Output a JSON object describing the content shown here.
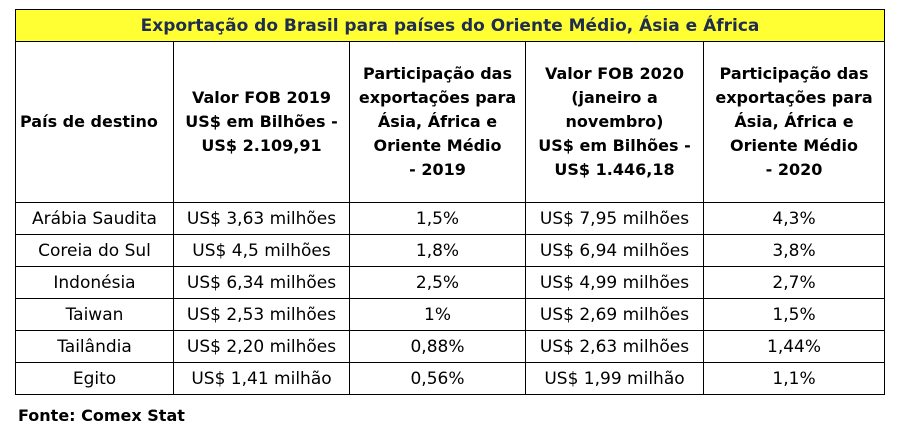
{
  "title": "Exportação do Brasil para países do Oriente Médio, Ásia e África",
  "headers": [
    {
      "lines": [
        "País de destino"
      ]
    },
    {
      "lines": [
        "Valor FOB 2019",
        "US$ em Bilhões -",
        "US$ 2.109,91"
      ]
    },
    {
      "lines": [
        "Participação das",
        "exportações para",
        "Ásia, África e",
        "Oriente Médio",
        "- 2019"
      ]
    },
    {
      "lines": [
        "Valor FOB 2020",
        "(janeiro a",
        "novembro)",
        "US$ em Bilhões -",
        "US$ 1.446,18"
      ]
    },
    {
      "lines": [
        "Participação das",
        "exportações para",
        "Ásia, África e",
        "Oriente Médio",
        "- 2020"
      ]
    }
  ],
  "rows": [
    [
      "Arábia Saudita",
      "US$ 3,63 milhões",
      "1,5%",
      "US$ 7,95 milhões",
      "4,3%"
    ],
    [
      "Coreia do Sul",
      "US$ 4,5 milhões",
      "1,8%",
      "US$ 6,94 milhões",
      "3,8%"
    ],
    [
      "Indonésia",
      "US$ 6,34 milhões",
      "2,5%",
      "US$ 4,99 milhões",
      "2,7%"
    ],
    [
      "Taiwan",
      "US$ 2,53 milhões",
      "1%",
      "US$ 2,69 milhões",
      "1,5%"
    ],
    [
      "Tailândia",
      "US$ 2,20 milhões",
      "0,88%",
      "US$ 2,63 milhões",
      "1,44%"
    ],
    [
      "Egito",
      "US$ 1,41 milhão",
      "0,56%",
      "US$ 1,99 milhão",
      "1,1%"
    ]
  ],
  "source": "Fonte: Comex Stat",
  "colors": {
    "title_bg": "#ffff33",
    "title_text": "#1f2d4f"
  }
}
